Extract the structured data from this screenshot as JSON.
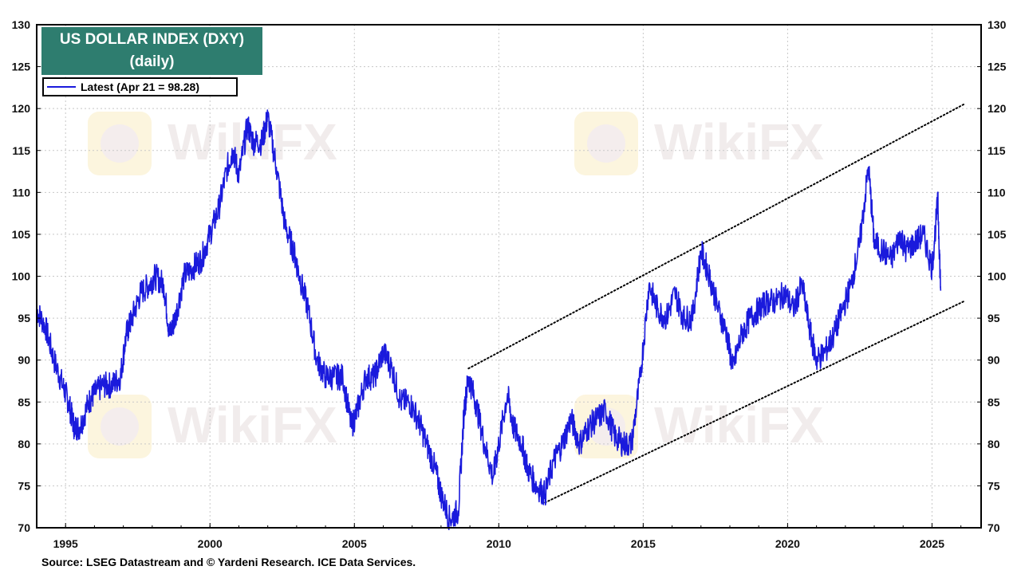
{
  "chart_data": {
    "type": "line",
    "title": "US DOLLAR INDEX (DXY)",
    "subtitle": "(daily)",
    "xlim": [
      1994.0,
      2026.7
    ],
    "ylim": [
      70,
      130
    ],
    "y_ticks": [
      70,
      75,
      80,
      85,
      90,
      95,
      100,
      105,
      110,
      115,
      120,
      125,
      130
    ],
    "x_ticks": [
      1995,
      2000,
      2005,
      2010,
      2015,
      2020,
      2025
    ],
    "grid": true,
    "legend_position": "top-left",
    "series": [
      {
        "name": "Latest (Apr 21 = 98.28)",
        "color": "#1a1adc",
        "x": [
          1994.0,
          1994.3,
          1994.6,
          1994.9,
          1995.1,
          1995.3,
          1995.5,
          1995.8,
          1996.0,
          1996.3,
          1996.6,
          1996.9,
          1997.1,
          1997.3,
          1997.6,
          1997.9,
          1998.1,
          1998.4,
          1998.6,
          1998.8,
          1999.1,
          1999.4,
          1999.7,
          2000.0,
          2000.3,
          2000.6,
          2000.8,
          2001.0,
          2001.3,
          2001.5,
          2001.8,
          2002.0,
          2002.3,
          2002.6,
          2002.9,
          2003.1,
          2003.4,
          2003.7,
          2004.0,
          2004.3,
          2004.6,
          2004.9,
          2005.1,
          2005.4,
          2005.7,
          2006.0,
          2006.3,
          2006.6,
          2006.9,
          2007.2,
          2007.5,
          2007.8,
          2008.0,
          2008.3,
          2008.6,
          2008.8,
          2008.95,
          2009.2,
          2009.5,
          2009.8,
          2010.0,
          2010.3,
          2010.5,
          2010.8,
          2011.0,
          2011.3,
          2011.6,
          2011.9,
          2012.2,
          2012.5,
          2012.8,
          2013.1,
          2013.4,
          2013.7,
          2014.0,
          2014.3,
          2014.6,
          2014.9,
          2015.2,
          2015.5,
          2015.8,
          2016.1,
          2016.4,
          2016.7,
          2017.0,
          2017.3,
          2017.6,
          2017.9,
          2018.1,
          2018.4,
          2018.7,
          2019.0,
          2019.3,
          2019.6,
          2019.9,
          2020.2,
          2020.5,
          2020.8,
          2021.0,
          2021.3,
          2021.6,
          2021.9,
          2022.2,
          2022.5,
          2022.8,
          2023.0,
          2023.3,
          2023.6,
          2023.9,
          2024.1,
          2024.4,
          2024.7,
          2025.0,
          2025.2,
          2025.3
        ],
        "y": [
          96,
          94,
          90,
          87,
          85,
          82,
          82,
          85,
          86,
          87,
          87,
          88,
          93,
          95,
          98,
          99,
          100,
          99,
          93,
          95,
          100,
          101,
          102,
          105,
          108,
          113,
          115,
          112,
          118,
          116,
          116,
          119,
          113,
          106,
          103,
          100,
          96,
          90,
          88,
          88,
          88,
          82,
          84,
          88,
          88,
          91,
          89,
          85,
          85,
          83,
          80,
          77,
          74,
          71,
          72,
          84,
          88,
          85,
          80,
          76,
          80,
          86,
          82,
          80,
          77,
          75,
          74,
          78,
          80,
          83,
          80,
          82,
          83,
          84,
          81,
          80,
          80,
          88,
          99,
          96,
          95,
          98,
          95,
          95,
          103,
          100,
          96,
          93,
          89,
          93,
          95,
          96,
          97,
          97,
          98,
          96,
          99,
          93,
          90,
          91,
          93,
          96,
          99,
          104,
          113,
          104,
          103,
          102,
          105,
          103,
          104,
          105,
          101,
          109,
          98.28
        ]
      }
    ],
    "trendlines": [
      {
        "x": [
          2008.95,
          2026.1
        ],
        "y": [
          89.0,
          120.5
        ]
      },
      {
        "x": [
          2011.6,
          2026.1
        ],
        "y": [
          73.0,
          97.0
        ]
      }
    ],
    "watermark_text": "WikiFX",
    "source": "Source: LSEG Datastream and © Yardeni Research. ICE Data Services."
  }
}
